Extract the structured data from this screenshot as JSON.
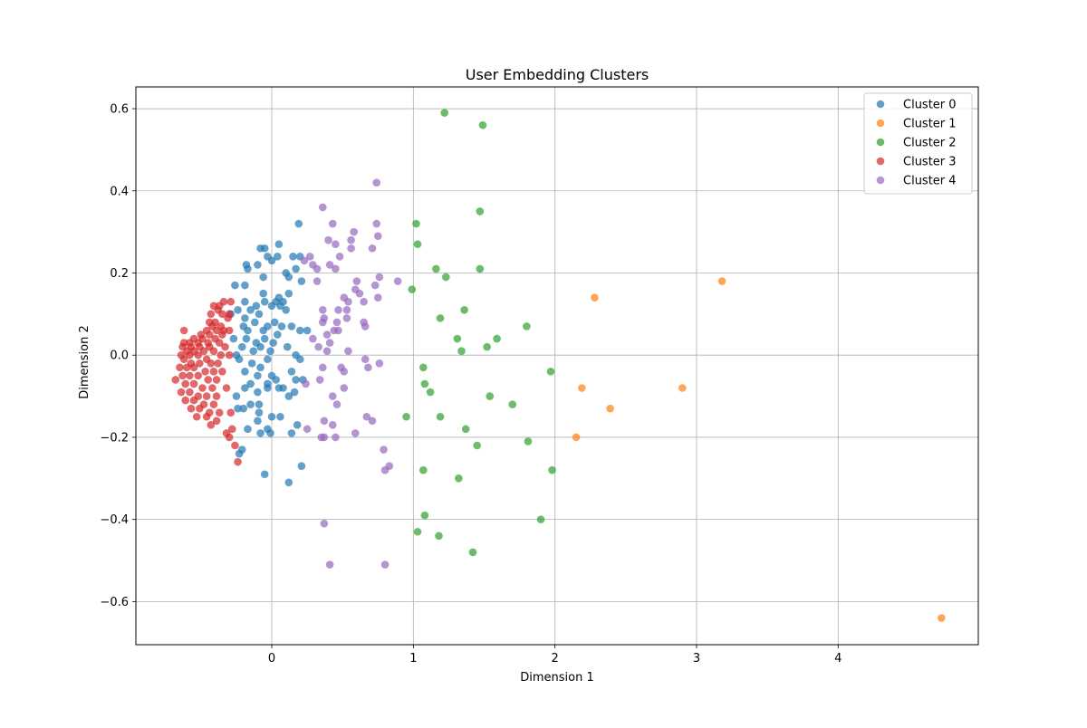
{
  "chart_data": {
    "type": "scatter",
    "title": "User Embedding Clusters",
    "xlabel": "Dimension 1",
    "ylabel": "Dimension 2",
    "xlim": [
      -0.96,
      4.99
    ],
    "ylim": [
      -0.705,
      0.653
    ],
    "xticks": [
      0,
      1,
      2,
      3,
      4
    ],
    "yticks": [
      -0.6,
      -0.4,
      -0.2,
      0.0,
      0.2,
      0.4,
      0.6
    ],
    "xtick_labels": [
      "0",
      "1",
      "2",
      "3",
      "4"
    ],
    "ytick_labels": [
      "−0.6",
      "−0.4",
      "−0.2",
      "0.0",
      "0.2",
      "0.4",
      "0.6"
    ],
    "grid": true,
    "legend": "top-right",
    "marker_alpha": 0.7,
    "series": [
      {
        "name": "Cluster 0",
        "color": "#1f77b4",
        "points": [
          [
            0.19,
            0.32
          ],
          [
            -0.08,
            0.26
          ],
          [
            -0.05,
            0.26
          ],
          [
            0.05,
            0.27
          ],
          [
            0.15,
            0.24
          ],
          [
            0.2,
            0.24
          ],
          [
            0.04,
            0.24
          ],
          [
            -0.03,
            0.24
          ],
          [
            -0.18,
            0.22
          ],
          [
            -0.1,
            0.22
          ],
          [
            0.0,
            0.23
          ],
          [
            0.1,
            0.2
          ],
          [
            0.17,
            0.21
          ],
          [
            0.21,
            0.18
          ],
          [
            -0.17,
            0.21
          ],
          [
            -0.06,
            0.19
          ],
          [
            0.12,
            0.19
          ],
          [
            -0.26,
            0.17
          ],
          [
            -0.19,
            0.17
          ],
          [
            -0.06,
            0.15
          ],
          [
            0.12,
            0.15
          ],
          [
            0.05,
            0.14
          ],
          [
            0.03,
            0.13
          ],
          [
            0.08,
            0.13
          ],
          [
            0.06,
            0.12
          ],
          [
            -0.05,
            0.13
          ],
          [
            -0.19,
            0.13
          ],
          [
            -0.11,
            0.12
          ],
          [
            -0.24,
            0.11
          ],
          [
            -0.15,
            0.11
          ],
          [
            0.0,
            0.12
          ],
          [
            0.1,
            0.11
          ],
          [
            -0.29,
            0.1
          ],
          [
            -0.19,
            0.09
          ],
          [
            -0.09,
            0.1
          ],
          [
            -0.2,
            0.07
          ],
          [
            -0.12,
            0.08
          ],
          [
            0.02,
            0.08
          ],
          [
            -0.03,
            0.07
          ],
          [
            0.07,
            0.07
          ],
          [
            0.14,
            0.07
          ],
          [
            0.2,
            0.06
          ],
          [
            0.25,
            0.06
          ],
          [
            -0.17,
            0.06
          ],
          [
            -0.06,
            0.06
          ],
          [
            0.04,
            0.05
          ],
          [
            -0.05,
            0.04
          ],
          [
            -0.18,
            0.04
          ],
          [
            -0.27,
            0.04
          ],
          [
            -0.11,
            0.03
          ],
          [
            0.01,
            0.03
          ],
          [
            0.11,
            0.02
          ],
          [
            -0.21,
            0.02
          ],
          [
            -0.08,
            0.02
          ],
          [
            -0.01,
            0.01
          ],
          [
            0.17,
            0.0
          ],
          [
            -0.25,
            0.0
          ],
          [
            -0.13,
            0.01
          ],
          [
            -0.03,
            -0.01
          ],
          [
            0.2,
            -0.01
          ],
          [
            -0.23,
            -0.01
          ],
          [
            -0.14,
            -0.02
          ],
          [
            -0.08,
            -0.03
          ],
          [
            0.14,
            -0.04
          ],
          [
            0.0,
            -0.05
          ],
          [
            -0.19,
            -0.04
          ],
          [
            -0.1,
            -0.05
          ],
          [
            0.03,
            -0.06
          ],
          [
            0.17,
            -0.06
          ],
          [
            0.22,
            -0.06
          ],
          [
            -0.03,
            -0.07
          ],
          [
            0.05,
            -0.08
          ],
          [
            -0.15,
            -0.07
          ],
          [
            -0.19,
            -0.08
          ],
          [
            0.08,
            -0.08
          ],
          [
            -0.03,
            -0.08
          ],
          [
            -0.1,
            -0.09
          ],
          [
            0.16,
            -0.09
          ],
          [
            0.12,
            -0.1
          ],
          [
            -0.25,
            -0.1
          ],
          [
            -0.15,
            -0.12
          ],
          [
            -0.09,
            -0.12
          ],
          [
            -0.2,
            -0.13
          ],
          [
            -0.24,
            -0.13
          ],
          [
            -0.09,
            -0.14
          ],
          [
            0.0,
            -0.15
          ],
          [
            0.06,
            -0.15
          ],
          [
            -0.1,
            -0.16
          ],
          [
            0.18,
            -0.17
          ],
          [
            -0.17,
            -0.18
          ],
          [
            -0.03,
            -0.18
          ],
          [
            0.14,
            -0.19
          ],
          [
            -0.08,
            -0.19
          ],
          [
            -0.01,
            -0.19
          ],
          [
            -0.21,
            -0.23
          ],
          [
            -0.23,
            -0.24
          ],
          [
            0.21,
            -0.27
          ],
          [
            -0.05,
            -0.29
          ],
          [
            0.12,
            -0.31
          ]
        ]
      },
      {
        "name": "Cluster 1",
        "color": "#ff7f0e",
        "points": [
          [
            3.18,
            0.18
          ],
          [
            2.28,
            0.14
          ],
          [
            2.19,
            -0.08
          ],
          [
            2.9,
            -0.08
          ],
          [
            2.39,
            -0.13
          ],
          [
            2.15,
            -0.2
          ],
          [
            4.73,
            -0.64
          ]
        ]
      },
      {
        "name": "Cluster 2",
        "color": "#2ca02c",
        "points": [
          [
            1.22,
            0.59
          ],
          [
            1.49,
            0.56
          ],
          [
            1.47,
            0.35
          ],
          [
            1.02,
            0.32
          ],
          [
            1.03,
            0.27
          ],
          [
            1.16,
            0.21
          ],
          [
            1.47,
            0.21
          ],
          [
            1.23,
            0.19
          ],
          [
            0.99,
            0.16
          ],
          [
            1.36,
            0.11
          ],
          [
            1.19,
            0.09
          ],
          [
            1.8,
            0.07
          ],
          [
            1.31,
            0.04
          ],
          [
            1.59,
            0.04
          ],
          [
            1.52,
            0.02
          ],
          [
            1.34,
            0.01
          ],
          [
            1.07,
            -0.03
          ],
          [
            1.97,
            -0.04
          ],
          [
            1.08,
            -0.07
          ],
          [
            1.12,
            -0.09
          ],
          [
            1.54,
            -0.1
          ],
          [
            1.7,
            -0.12
          ],
          [
            0.95,
            -0.15
          ],
          [
            1.19,
            -0.15
          ],
          [
            1.37,
            -0.18
          ],
          [
            1.81,
            -0.21
          ],
          [
            1.45,
            -0.22
          ],
          [
            1.07,
            -0.28
          ],
          [
            1.98,
            -0.28
          ],
          [
            1.32,
            -0.3
          ],
          [
            1.08,
            -0.39
          ],
          [
            1.9,
            -0.4
          ],
          [
            1.03,
            -0.43
          ],
          [
            1.18,
            -0.44
          ],
          [
            1.42,
            -0.48
          ]
        ]
      },
      {
        "name": "Cluster 3",
        "color": "#d62728",
        "points": [
          [
            -0.34,
            0.13
          ],
          [
            -0.29,
            0.13
          ],
          [
            -0.37,
            0.12
          ],
          [
            -0.41,
            0.12
          ],
          [
            -0.38,
            0.11
          ],
          [
            -0.3,
            0.1
          ],
          [
            -0.35,
            0.1
          ],
          [
            -0.43,
            0.1
          ],
          [
            -0.31,
            0.09
          ],
          [
            -0.4,
            0.08
          ],
          [
            -0.44,
            0.08
          ],
          [
            -0.36,
            0.07
          ],
          [
            -0.42,
            0.07
          ],
          [
            -0.34,
            0.06
          ],
          [
            -0.46,
            0.06
          ],
          [
            -0.39,
            0.06
          ],
          [
            -0.3,
            0.06
          ],
          [
            -0.5,
            0.05
          ],
          [
            -0.44,
            0.05
          ],
          [
            -0.35,
            0.05
          ],
          [
            -0.62,
            0.06
          ],
          [
            -0.55,
            0.04
          ],
          [
            -0.49,
            0.04
          ],
          [
            -0.4,
            0.04
          ],
          [
            -0.62,
            0.03
          ],
          [
            -0.58,
            0.03
          ],
          [
            -0.52,
            0.03
          ],
          [
            -0.45,
            0.03
          ],
          [
            -0.37,
            0.03
          ],
          [
            -0.63,
            0.02
          ],
          [
            -0.57,
            0.02
          ],
          [
            -0.51,
            0.02
          ],
          [
            -0.44,
            0.02
          ],
          [
            -0.33,
            0.02
          ],
          [
            -0.6,
            0.01
          ],
          [
            -0.55,
            0.01
          ],
          [
            -0.48,
            0.01
          ],
          [
            -0.41,
            0.01
          ],
          [
            -0.36,
            0.0
          ],
          [
            -0.3,
            0.0
          ],
          [
            -0.64,
            0.0
          ],
          [
            -0.58,
            0.0
          ],
          [
            -0.52,
            0.0
          ],
          [
            -0.46,
            -0.01
          ],
          [
            -0.62,
            -0.01
          ],
          [
            -0.57,
            -0.02
          ],
          [
            -0.51,
            -0.02
          ],
          [
            -0.43,
            -0.02
          ],
          [
            -0.38,
            -0.02
          ],
          [
            -0.65,
            -0.03
          ],
          [
            -0.6,
            -0.03
          ],
          [
            -0.55,
            -0.03
          ],
          [
            -0.47,
            -0.04
          ],
          [
            -0.41,
            -0.04
          ],
          [
            -0.35,
            -0.04
          ],
          [
            -0.63,
            -0.05
          ],
          [
            -0.58,
            -0.05
          ],
          [
            -0.52,
            -0.05
          ],
          [
            -0.45,
            -0.06
          ],
          [
            -0.39,
            -0.06
          ],
          [
            -0.68,
            -0.06
          ],
          [
            -0.61,
            -0.07
          ],
          [
            -0.55,
            -0.07
          ],
          [
            -0.49,
            -0.08
          ],
          [
            -0.42,
            -0.08
          ],
          [
            -0.32,
            -0.08
          ],
          [
            -0.64,
            -0.09
          ],
          [
            -0.58,
            -0.09
          ],
          [
            -0.52,
            -0.1
          ],
          [
            -0.46,
            -0.1
          ],
          [
            -0.39,
            -0.1
          ],
          [
            -0.61,
            -0.11
          ],
          [
            -0.55,
            -0.11
          ],
          [
            -0.48,
            -0.12
          ],
          [
            -0.41,
            -0.12
          ],
          [
            -0.57,
            -0.13
          ],
          [
            -0.51,
            -0.13
          ],
          [
            -0.44,
            -0.14
          ],
          [
            -0.37,
            -0.14
          ],
          [
            -0.29,
            -0.14
          ],
          [
            -0.53,
            -0.15
          ],
          [
            -0.46,
            -0.15
          ],
          [
            -0.39,
            -0.16
          ],
          [
            -0.43,
            -0.17
          ],
          [
            -0.28,
            -0.18
          ],
          [
            -0.32,
            -0.19
          ],
          [
            -0.3,
            -0.2
          ],
          [
            -0.26,
            -0.22
          ],
          [
            -0.24,
            -0.26
          ]
        ]
      },
      {
        "name": "Cluster 4",
        "color": "#9467bd",
        "points": [
          [
            0.74,
            0.42
          ],
          [
            0.36,
            0.36
          ],
          [
            0.74,
            0.32
          ],
          [
            0.43,
            0.32
          ],
          [
            0.58,
            0.3
          ],
          [
            0.75,
            0.29
          ],
          [
            0.4,
            0.28
          ],
          [
            0.45,
            0.27
          ],
          [
            0.56,
            0.28
          ],
          [
            0.71,
            0.26
          ],
          [
            0.56,
            0.26
          ],
          [
            0.27,
            0.24
          ],
          [
            0.48,
            0.24
          ],
          [
            0.23,
            0.23
          ],
          [
            0.41,
            0.22
          ],
          [
            0.29,
            0.22
          ],
          [
            0.45,
            0.21
          ],
          [
            0.32,
            0.21
          ],
          [
            0.76,
            0.19
          ],
          [
            0.6,
            0.18
          ],
          [
            0.32,
            0.18
          ],
          [
            0.89,
            0.18
          ],
          [
            0.73,
            0.17
          ],
          [
            0.59,
            0.16
          ],
          [
            0.62,
            0.15
          ],
          [
            0.75,
            0.14
          ],
          [
            0.51,
            0.14
          ],
          [
            0.54,
            0.13
          ],
          [
            0.65,
            0.13
          ],
          [
            0.36,
            0.11
          ],
          [
            0.47,
            0.11
          ],
          [
            0.53,
            0.11
          ],
          [
            0.37,
            0.09
          ],
          [
            0.53,
            0.09
          ],
          [
            0.46,
            0.08
          ],
          [
            0.36,
            0.08
          ],
          [
            0.65,
            0.08
          ],
          [
            0.66,
            0.07
          ],
          [
            0.47,
            0.06
          ],
          [
            0.39,
            0.05
          ],
          [
            0.44,
            0.06
          ],
          [
            0.29,
            0.04
          ],
          [
            0.41,
            0.03
          ],
          [
            0.33,
            0.02
          ],
          [
            0.39,
            0.01
          ],
          [
            0.54,
            0.01
          ],
          [
            0.66,
            -0.01
          ],
          [
            0.76,
            -0.02
          ],
          [
            0.36,
            -0.03
          ],
          [
            0.49,
            -0.03
          ],
          [
            0.68,
            -0.03
          ],
          [
            0.51,
            -0.04
          ],
          [
            0.34,
            -0.06
          ],
          [
            0.24,
            -0.07
          ],
          [
            0.51,
            -0.08
          ],
          [
            0.43,
            -0.1
          ],
          [
            0.46,
            -0.12
          ],
          [
            0.67,
            -0.15
          ],
          [
            0.71,
            -0.16
          ],
          [
            0.37,
            -0.16
          ],
          [
            0.43,
            -0.17
          ],
          [
            0.25,
            -0.18
          ],
          [
            0.59,
            -0.19
          ],
          [
            0.37,
            -0.2
          ],
          [
            0.45,
            -0.2
          ],
          [
            0.35,
            -0.2
          ],
          [
            0.79,
            -0.23
          ],
          [
            0.83,
            -0.27
          ],
          [
            0.8,
            -0.28
          ],
          [
            0.37,
            -0.41
          ],
          [
            0.41,
            -0.51
          ],
          [
            0.8,
            -0.51
          ]
        ]
      }
    ]
  }
}
